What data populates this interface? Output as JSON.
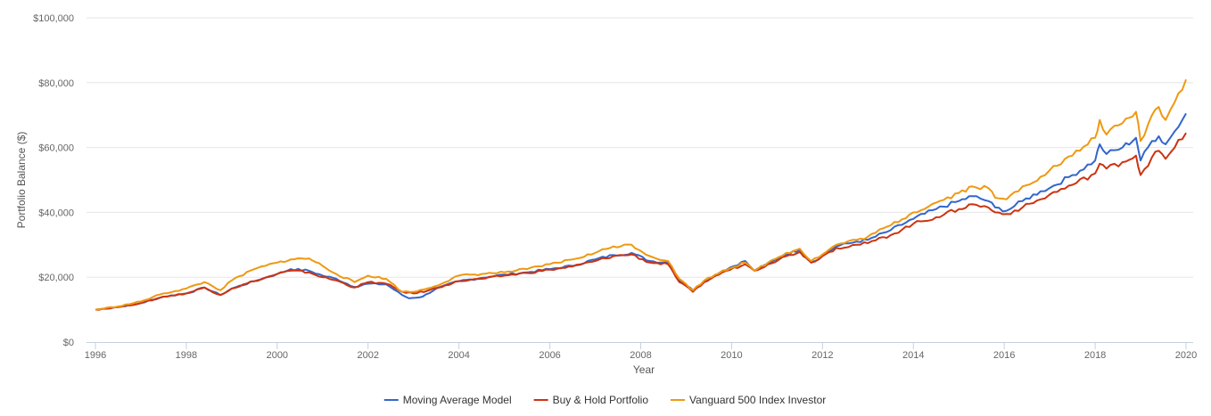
{
  "chart_data": {
    "type": "line",
    "xlabel": "Year",
    "ylabel": "Portfolio Balance ($)",
    "xlim": [
      1996,
      2020
    ],
    "ylim": [
      0,
      100000
    ],
    "x_ticks": [
      "1996",
      "1998",
      "2000",
      "2002",
      "2004",
      "2006",
      "2008",
      "2010",
      "2012",
      "2014",
      "2016",
      "2018",
      "2020"
    ],
    "y_ticks": [
      "$0",
      "$20,000",
      "$40,000",
      "$60,000",
      "$80,000",
      "$100,000"
    ],
    "grid": true,
    "legend_position": "bottom-center",
    "series": [
      {
        "name": "Moving Average Model",
        "color": "#3366cc",
        "points": [
          [
            1996.0,
            10000
          ],
          [
            1996.5,
            10800
          ],
          [
            1997.0,
            12000
          ],
          [
            1997.5,
            14000
          ],
          [
            1998.0,
            15000
          ],
          [
            1998.4,
            16800
          ],
          [
            1998.75,
            14500
          ],
          [
            1999.0,
            16500
          ],
          [
            1999.5,
            18800
          ],
          [
            2000.0,
            21000
          ],
          [
            2000.3,
            22500
          ],
          [
            2000.7,
            22000
          ],
          [
            2001.0,
            20500
          ],
          [
            2001.3,
            19500
          ],
          [
            2001.7,
            17000
          ],
          [
            2002.0,
            18000
          ],
          [
            2002.4,
            17800
          ],
          [
            2002.75,
            14500
          ],
          [
            2002.9,
            13500
          ],
          [
            2003.2,
            14000
          ],
          [
            2003.5,
            16500
          ],
          [
            2004.0,
            18800
          ],
          [
            2004.5,
            19800
          ],
          [
            2005.0,
            20800
          ],
          [
            2005.5,
            21500
          ],
          [
            2006.0,
            22500
          ],
          [
            2006.5,
            23500
          ],
          [
            2007.0,
            25500
          ],
          [
            2007.4,
            26800
          ],
          [
            2007.8,
            27500
          ],
          [
            2008.2,
            25000
          ],
          [
            2008.6,
            24500
          ],
          [
            2008.85,
            19000
          ],
          [
            2009.15,
            16000
          ],
          [
            2009.4,
            18500
          ],
          [
            2009.8,
            22000
          ],
          [
            2010.3,
            25000
          ],
          [
            2010.5,
            22000
          ],
          [
            2010.8,
            24000
          ],
          [
            2011.2,
            27000
          ],
          [
            2011.5,
            28500
          ],
          [
            2011.75,
            24500
          ],
          [
            2012.0,
            26500
          ],
          [
            2012.3,
            29500
          ],
          [
            2012.75,
            31000
          ],
          [
            2013.0,
            31500
          ],
          [
            2013.5,
            34500
          ],
          [
            2014.0,
            38000
          ],
          [
            2014.5,
            41000
          ],
          [
            2015.0,
            43500
          ],
          [
            2015.3,
            45000
          ],
          [
            2015.65,
            43500
          ],
          [
            2015.8,
            41500
          ],
          [
            2016.05,
            40500
          ],
          [
            2016.4,
            43500
          ],
          [
            2016.8,
            46500
          ],
          [
            2017.0,
            47500
          ],
          [
            2017.5,
            51500
          ],
          [
            2018.0,
            56000
          ],
          [
            2018.1,
            61000
          ],
          [
            2018.25,
            58000
          ],
          [
            2018.6,
            60000
          ],
          [
            2018.9,
            63000
          ],
          [
            2019.0,
            56000
          ],
          [
            2019.25,
            62000
          ],
          [
            2019.4,
            63500
          ],
          [
            2019.55,
            61000
          ],
          [
            2019.75,
            65000
          ],
          [
            2020.0,
            70500
          ]
        ]
      },
      {
        "name": "Buy & Hold Portfolio",
        "color": "#cc3311",
        "points": [
          [
            1996.0,
            10000
          ],
          [
            1996.5,
            10800
          ],
          [
            1997.0,
            12000
          ],
          [
            1997.5,
            14000
          ],
          [
            1998.0,
            15000
          ],
          [
            1998.4,
            16800
          ],
          [
            1998.75,
            14500
          ],
          [
            1999.0,
            16500
          ],
          [
            1999.5,
            18800
          ],
          [
            2000.0,
            21000
          ],
          [
            2000.3,
            22000
          ],
          [
            2000.7,
            21500
          ],
          [
            2001.0,
            20000
          ],
          [
            2001.3,
            19000
          ],
          [
            2001.7,
            16800
          ],
          [
            2002.0,
            18500
          ],
          [
            2002.4,
            18000
          ],
          [
            2002.75,
            15500
          ],
          [
            2003.0,
            15000
          ],
          [
            2003.3,
            15800
          ],
          [
            2003.7,
            17500
          ],
          [
            2004.0,
            18800
          ],
          [
            2004.5,
            19500
          ],
          [
            2005.0,
            20500
          ],
          [
            2005.5,
            21300
          ],
          [
            2006.0,
            22300
          ],
          [
            2006.5,
            23300
          ],
          [
            2007.0,
            25000
          ],
          [
            2007.4,
            26500
          ],
          [
            2007.8,
            27000
          ],
          [
            2008.2,
            24500
          ],
          [
            2008.6,
            24000
          ],
          [
            2008.85,
            18500
          ],
          [
            2009.15,
            15500
          ],
          [
            2009.4,
            18500
          ],
          [
            2009.8,
            21500
          ],
          [
            2010.3,
            24000
          ],
          [
            2010.5,
            22000
          ],
          [
            2010.8,
            24000
          ],
          [
            2011.2,
            26500
          ],
          [
            2011.5,
            27800
          ],
          [
            2011.75,
            24500
          ],
          [
            2012.0,
            26500
          ],
          [
            2012.3,
            29000
          ],
          [
            2012.75,
            30000
          ],
          [
            2013.0,
            30500
          ],
          [
            2013.5,
            33000
          ],
          [
            2014.0,
            36500
          ],
          [
            2014.5,
            38500
          ],
          [
            2015.0,
            41000
          ],
          [
            2015.3,
            42500
          ],
          [
            2015.65,
            41500
          ],
          [
            2015.8,
            40000
          ],
          [
            2016.05,
            39500
          ],
          [
            2016.4,
            41500
          ],
          [
            2016.8,
            44000
          ],
          [
            2017.0,
            45500
          ],
          [
            2017.5,
            48500
          ],
          [
            2018.0,
            52000
          ],
          [
            2018.1,
            55000
          ],
          [
            2018.25,
            53500
          ],
          [
            2018.6,
            55500
          ],
          [
            2018.9,
            57500
          ],
          [
            2019.0,
            51500
          ],
          [
            2019.25,
            57000
          ],
          [
            2019.4,
            59000
          ],
          [
            2019.55,
            56500
          ],
          [
            2019.75,
            60000
          ],
          [
            2020.0,
            64500
          ]
        ]
      },
      {
        "name": "Vanguard 500 Index Investor",
        "color": "#ee9911",
        "points": [
          [
            1996.0,
            10000
          ],
          [
            1996.5,
            11000
          ],
          [
            1997.0,
            12500
          ],
          [
            1997.5,
            15000
          ],
          [
            1998.0,
            16500
          ],
          [
            1998.4,
            18500
          ],
          [
            1998.75,
            16000
          ],
          [
            1999.0,
            19000
          ],
          [
            1999.5,
            22500
          ],
          [
            2000.0,
            24500
          ],
          [
            2000.3,
            25500
          ],
          [
            2000.7,
            25800
          ],
          [
            2001.0,
            23500
          ],
          [
            2001.3,
            21000
          ],
          [
            2001.7,
            18500
          ],
          [
            2002.0,
            20500
          ],
          [
            2002.4,
            19500
          ],
          [
            2002.75,
            15500
          ],
          [
            2003.0,
            15500
          ],
          [
            2003.3,
            16500
          ],
          [
            2003.7,
            18500
          ],
          [
            2004.0,
            20500
          ],
          [
            2004.5,
            21000
          ],
          [
            2005.0,
            21500
          ],
          [
            2005.5,
            22500
          ],
          [
            2006.0,
            24000
          ],
          [
            2006.5,
            25500
          ],
          [
            2007.0,
            27500
          ],
          [
            2007.4,
            29500
          ],
          [
            2007.8,
            30000
          ],
          [
            2008.2,
            26500
          ],
          [
            2008.6,
            25000
          ],
          [
            2008.85,
            19500
          ],
          [
            2009.15,
            16000
          ],
          [
            2009.4,
            19000
          ],
          [
            2009.8,
            22000
          ],
          [
            2010.3,
            24500
          ],
          [
            2010.5,
            22000
          ],
          [
            2010.8,
            24500
          ],
          [
            2011.2,
            27500
          ],
          [
            2011.5,
            28800
          ],
          [
            2011.75,
            25000
          ],
          [
            2012.0,
            27000
          ],
          [
            2012.3,
            30000
          ],
          [
            2012.75,
            31500
          ],
          [
            2013.0,
            32500
          ],
          [
            2013.5,
            36000
          ],
          [
            2014.0,
            40000
          ],
          [
            2014.5,
            43000
          ],
          [
            2015.0,
            46000
          ],
          [
            2015.3,
            48000
          ],
          [
            2015.65,
            47500
          ],
          [
            2015.8,
            44500
          ],
          [
            2016.05,
            44000
          ],
          [
            2016.4,
            48000
          ],
          [
            2016.8,
            51000
          ],
          [
            2017.0,
            53000
          ],
          [
            2017.5,
            57500
          ],
          [
            2018.0,
            63000
          ],
          [
            2018.1,
            68500
          ],
          [
            2018.25,
            64000
          ],
          [
            2018.6,
            67500
          ],
          [
            2018.9,
            71000
          ],
          [
            2019.0,
            62000
          ],
          [
            2019.25,
            70000
          ],
          [
            2019.4,
            72500
          ],
          [
            2019.55,
            68500
          ],
          [
            2019.75,
            74000
          ],
          [
            2020.0,
            81000
          ]
        ]
      }
    ]
  }
}
